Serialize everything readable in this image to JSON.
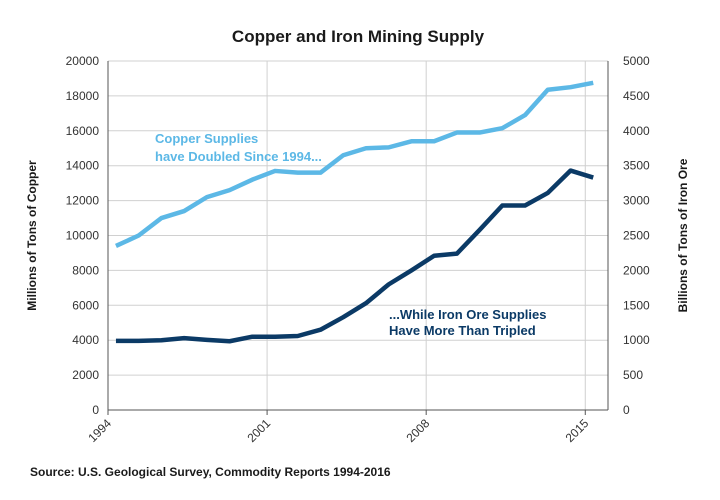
{
  "chart_data": {
    "type": "line",
    "title": "Copper and Iron Mining Supply",
    "x": [
      1994,
      1995,
      1996,
      1997,
      1998,
      1999,
      2000,
      2001,
      2002,
      2003,
      2004,
      2005,
      2006,
      2007,
      2008,
      2009,
      2010,
      2011,
      2012,
      2013,
      2014,
      2015
    ],
    "x_tick_labels": [
      "1994",
      "2001",
      "2008",
      "2015"
    ],
    "x_ticks": [
      1994,
      2001,
      2008,
      2015
    ],
    "xlim": [
      1994,
      2016
    ],
    "ylabel_left": "Millions of Tons of Copper",
    "ylabel_right": "Billions of Tons of Iron Ore",
    "ylim_left": [
      0,
      20000
    ],
    "ylim_right": [
      0,
      5000
    ],
    "y_ticks_left": [
      0,
      2000,
      4000,
      6000,
      8000,
      10000,
      12000,
      14000,
      16000,
      18000,
      20000
    ],
    "y_ticks_right": [
      0,
      500,
      1000,
      1500,
      2000,
      2500,
      3000,
      3500,
      4000,
      4500,
      5000
    ],
    "grid": true,
    "series": [
      {
        "name": "Copper",
        "axis": "left",
        "color": "#5cb8e6",
        "values": [
          9400,
          10000,
          11000,
          11400,
          12200,
          12600,
          13200,
          13700,
          13600,
          13600,
          14600,
          15000,
          15050,
          15400,
          15400,
          15900,
          15900,
          16150,
          16900,
          18350,
          18500,
          18750
        ]
      },
      {
        "name": "Iron Ore",
        "axis": "right",
        "color": "#0b3a66",
        "values": [
          990,
          990,
          1000,
          1030,
          1005,
          985,
          1050,
          1050,
          1060,
          1150,
          1330,
          1530,
          1800,
          2000,
          2210,
          2240,
          2580,
          2930,
          2930,
          3110,
          3430,
          3330
        ]
      }
    ],
    "annotations": [
      {
        "series": "Copper",
        "lines": [
          "Copper Supplies",
          "have Doubled Since 1994..."
        ]
      },
      {
        "series": "Iron Ore",
        "lines": [
          "...While Iron Ore Supplies",
          "Have More Than Tripled"
        ]
      }
    ],
    "source": "Source: U.S. Geological Survey, Commodity Reports 1994-2016"
  }
}
